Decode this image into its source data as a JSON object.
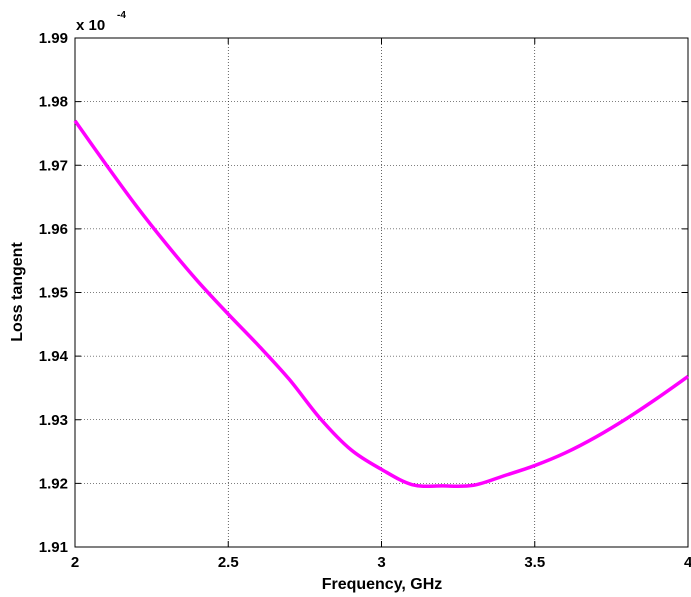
{
  "chart_data": {
    "type": "line",
    "title": "",
    "xlabel": "Frequency, GHz",
    "ylabel": "Loss tangent",
    "y_exponent_prefix": "x 10",
    "y_exponent_power": "-4",
    "xlim": [
      2,
      4
    ],
    "ylim": [
      1.91,
      1.99
    ],
    "x_ticks": [
      {
        "value": 2,
        "label": "2"
      },
      {
        "value": 2.5,
        "label": "2.5"
      },
      {
        "value": 3,
        "label": "3"
      },
      {
        "value": 3.5,
        "label": "3.5"
      },
      {
        "value": 4,
        "label": "4"
      }
    ],
    "y_ticks": [
      {
        "value": 1.91,
        "label": "1.91"
      },
      {
        "value": 1.92,
        "label": "1.92"
      },
      {
        "value": 1.93,
        "label": "1.93"
      },
      {
        "value": 1.94,
        "label": "1.94"
      },
      {
        "value": 1.95,
        "label": "1.95"
      },
      {
        "value": 1.96,
        "label": "1.96"
      },
      {
        "value": 1.97,
        "label": "1.97"
      },
      {
        "value": 1.98,
        "label": "1.98"
      },
      {
        "value": 1.99,
        "label": "1.99"
      }
    ],
    "grid": true,
    "legend": "none",
    "series": [
      {
        "color": "#ff00ff",
        "x": [
          2.0,
          2.1,
          2.2,
          2.3,
          2.4,
          2.5,
          2.6,
          2.7,
          2.8,
          2.9,
          3.0,
          3.1,
          3.2,
          3.3,
          3.4,
          3.5,
          3.6,
          3.7,
          3.8,
          3.9,
          4.0
        ],
        "y": [
          1.977,
          1.9702,
          1.9636,
          1.9575,
          1.9518,
          1.9466,
          1.9416,
          1.9363,
          1.9302,
          1.9253,
          1.9222,
          1.9198,
          1.9196,
          1.9197,
          1.9212,
          1.9228,
          1.9248,
          1.9273,
          1.9302,
          1.9334,
          1.9368
        ]
      }
    ]
  }
}
